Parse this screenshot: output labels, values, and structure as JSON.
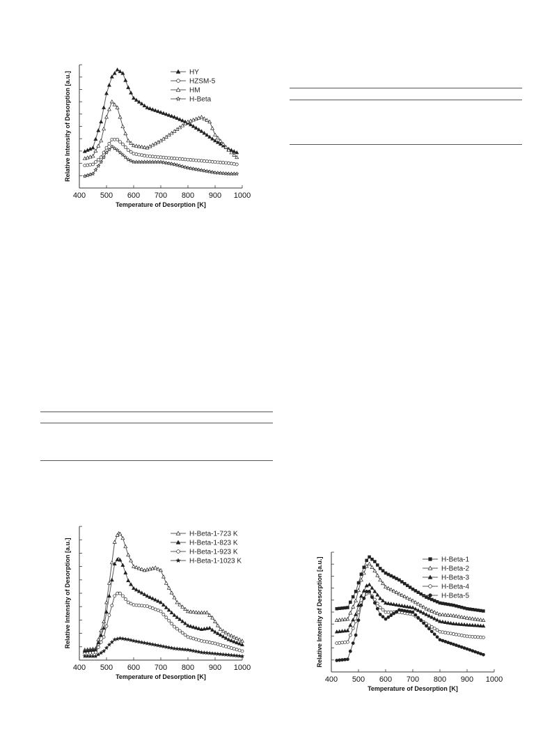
{
  "chart_data": [
    {
      "type": "line",
      "xlabel": "Temperature of Desorption [K]",
      "ylabel": "Relative Intensity of Desorption [a.u.]",
      "xlim": [
        400,
        1000
      ],
      "x_ticks": [
        400,
        500,
        600,
        700,
        800,
        900,
        1000
      ],
      "legend_position": "top-right",
      "grid": false,
      "series": [
        {
          "name": "HY",
          "marker": "triangle-filled",
          "x": [
            420,
            450,
            480,
            500,
            520,
            540,
            560,
            580,
            600,
            650,
            700,
            750,
            800,
            850,
            900,
            950,
            980
          ],
          "y": [
            0.31,
            0.34,
            0.56,
            0.8,
            0.94,
            1.0,
            0.97,
            0.85,
            0.76,
            0.68,
            0.64,
            0.6,
            0.55,
            0.48,
            0.4,
            0.33,
            0.3
          ]
        },
        {
          "name": "HZSM-5",
          "marker": "circle-open",
          "x": [
            420,
            450,
            480,
            500,
            520,
            540,
            560,
            580,
            600,
            650,
            700,
            750,
            800,
            850,
            900,
            950,
            980
          ],
          "y": [
            0.19,
            0.2,
            0.26,
            0.34,
            0.41,
            0.41,
            0.37,
            0.32,
            0.29,
            0.27,
            0.26,
            0.25,
            0.24,
            0.23,
            0.22,
            0.21,
            0.2
          ]
        },
        {
          "name": "HM",
          "marker": "triangle-open",
          "x": [
            420,
            450,
            480,
            500,
            520,
            540,
            560,
            580,
            600,
            650,
            700,
            750,
            800,
            850,
            880,
            900,
            950,
            980
          ],
          "y": [
            0.25,
            0.27,
            0.4,
            0.6,
            0.73,
            0.68,
            0.52,
            0.4,
            0.36,
            0.34,
            0.4,
            0.48,
            0.56,
            0.6,
            0.56,
            0.45,
            0.32,
            0.26
          ]
        },
        {
          "name": "H-Beta",
          "marker": "star-open",
          "x": [
            420,
            450,
            480,
            500,
            520,
            540,
            560,
            580,
            600,
            650,
            700,
            750,
            800,
            850,
            900,
            950,
            980
          ],
          "y": [
            0.1,
            0.12,
            0.22,
            0.3,
            0.35,
            0.32,
            0.28,
            0.24,
            0.22,
            0.22,
            0.22,
            0.2,
            0.17,
            0.15,
            0.13,
            0.12,
            0.12
          ]
        }
      ]
    },
    {
      "type": "line",
      "xlabel": "Temperature of Desorption [K]",
      "ylabel": "Relative Intensity of Desorption [a.u.]",
      "xlim": [
        400,
        1000
      ],
      "x_ticks": [
        400,
        500,
        600,
        700,
        800,
        900,
        1000
      ],
      "legend_position": "top-right",
      "grid": false,
      "series": [
        {
          "name": "H-Beta-1-723 K",
          "marker": "triangle-open",
          "x": [
            420,
            460,
            490,
            510,
            530,
            545,
            560,
            580,
            600,
            640,
            680,
            700,
            720,
            760,
            800,
            840,
            870,
            890,
            920,
            950,
            1000
          ],
          "y": [
            0.08,
            0.09,
            0.3,
            0.6,
            0.92,
            1.0,
            0.95,
            0.82,
            0.73,
            0.7,
            0.72,
            0.7,
            0.6,
            0.45,
            0.38,
            0.37,
            0.37,
            0.33,
            0.24,
            0.2,
            0.15
          ]
        },
        {
          "name": "H-Beta-1-823 K",
          "marker": "triangle-filled",
          "x": [
            420,
            460,
            490,
            510,
            530,
            545,
            560,
            580,
            600,
            650,
            700,
            750,
            800,
            850,
            880,
            900,
            950,
            1000
          ],
          "y": [
            0.07,
            0.08,
            0.25,
            0.5,
            0.75,
            0.8,
            0.74,
            0.62,
            0.56,
            0.5,
            0.45,
            0.35,
            0.27,
            0.24,
            0.25,
            0.22,
            0.16,
            0.12
          ]
        },
        {
          "name": "H-Beta-1-923 K",
          "marker": "circle-open",
          "x": [
            420,
            460,
            490,
            510,
            530,
            545,
            560,
            580,
            600,
            650,
            700,
            750,
            800,
            850,
            900,
            950,
            1000
          ],
          "y": [
            0.05,
            0.06,
            0.18,
            0.35,
            0.5,
            0.53,
            0.5,
            0.45,
            0.43,
            0.42,
            0.38,
            0.26,
            0.18,
            0.15,
            0.13,
            0.1,
            0.07
          ]
        },
        {
          "name": "H-Beta-1-1023 K",
          "marker": "star-filled",
          "x": [
            420,
            460,
            490,
            510,
            530,
            550,
            580,
            600,
            650,
            700,
            750,
            800,
            850,
            900,
            950,
            1000
          ],
          "y": [
            0.03,
            0.03,
            0.07,
            0.12,
            0.16,
            0.17,
            0.16,
            0.15,
            0.13,
            0.11,
            0.09,
            0.08,
            0.06,
            0.05,
            0.04,
            0.03
          ]
        }
      ]
    },
    {
      "type": "line",
      "xlabel": "Temperature of Desorption [K]",
      "ylabel": "Relative Intensity of Desorption [a.u.]",
      "xlim": [
        400,
        1000
      ],
      "x_ticks": [
        400,
        500,
        600,
        700,
        800,
        900,
        1000
      ],
      "legend_position": "top-right",
      "grid": false,
      "series": [
        {
          "name": "H-Beta-1",
          "marker": "square-filled",
          "x": [
            420,
            460,
            490,
            510,
            530,
            540,
            560,
            580,
            600,
            650,
            700,
            750,
            800,
            850,
            900,
            960
          ],
          "y": [
            0.55,
            0.56,
            0.7,
            0.85,
            0.97,
            1.0,
            0.96,
            0.9,
            0.86,
            0.8,
            0.72,
            0.65,
            0.6,
            0.58,
            0.55,
            0.53
          ]
        },
        {
          "name": "H-Beta-2",
          "marker": "triangle-open",
          "x": [
            420,
            460,
            490,
            510,
            530,
            540,
            560,
            580,
            600,
            650,
            700,
            750,
            800,
            850,
            900,
            960
          ],
          "y": [
            0.45,
            0.46,
            0.62,
            0.8,
            0.92,
            0.94,
            0.88,
            0.8,
            0.74,
            0.68,
            0.62,
            0.55,
            0.5,
            0.49,
            0.47,
            0.45
          ]
        },
        {
          "name": "H-Beta-3",
          "marker": "triangle-filled",
          "x": [
            420,
            460,
            490,
            510,
            530,
            540,
            560,
            580,
            600,
            650,
            700,
            750,
            800,
            850,
            900,
            960
          ],
          "y": [
            0.35,
            0.36,
            0.5,
            0.66,
            0.75,
            0.76,
            0.7,
            0.64,
            0.6,
            0.58,
            0.56,
            0.5,
            0.44,
            0.42,
            0.41,
            0.4
          ]
        },
        {
          "name": "H-Beta-4",
          "marker": "circle-open",
          "x": [
            420,
            460,
            490,
            510,
            530,
            540,
            560,
            580,
            600,
            650,
            700,
            750,
            800,
            850,
            900,
            960
          ],
          "y": [
            0.25,
            0.26,
            0.44,
            0.6,
            0.68,
            0.69,
            0.63,
            0.56,
            0.52,
            0.52,
            0.5,
            0.42,
            0.35,
            0.33,
            0.31,
            0.3
          ]
        },
        {
          "name": "H-Beta-5",
          "marker": "circle-filled",
          "x": [
            420,
            460,
            490,
            510,
            530,
            540,
            560,
            580,
            600,
            650,
            700,
            750,
            800,
            850,
            900,
            960
          ],
          "y": [
            0.1,
            0.11,
            0.32,
            0.58,
            0.7,
            0.7,
            0.6,
            0.5,
            0.46,
            0.54,
            0.52,
            0.4,
            0.28,
            0.24,
            0.2,
            0.15
          ]
        }
      ]
    }
  ],
  "colors": {
    "line": "#555555",
    "marker_fill": "#222222",
    "hollow_fill": "#ffffff"
  }
}
